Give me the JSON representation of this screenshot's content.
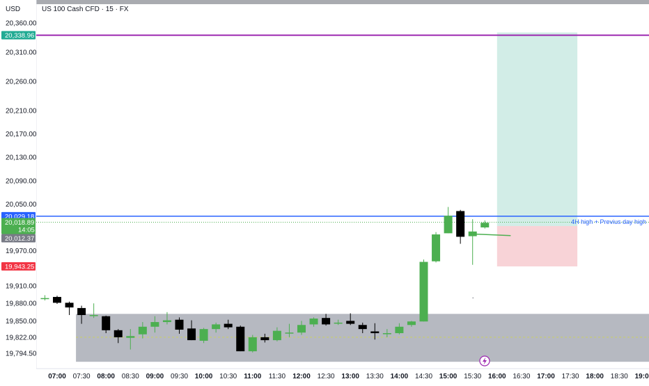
{
  "header": {
    "currency": "USD",
    "symbol_title": "US 100 Cash CFD · 15 · FX"
  },
  "colors": {
    "up": "#4caf50",
    "down": "#000000",
    "target_line": "#9c27b0",
    "level_line": "#2962ff",
    "zone_gray": "#b2b5be",
    "profit_zone": "#d2ede7",
    "loss_zone": "#f8d3d7",
    "badge_target": "#22ab94",
    "badge_level": "#2962ff",
    "badge_price": "#4caf50",
    "badge_gray": "#787b86",
    "badge_stop": "#f23645"
  },
  "badges": {
    "target": "20,338.96",
    "level": "20,029.18",
    "last_price": "20,018.89",
    "countdown": "14:05",
    "entry": "20,012.37",
    "stop": "19,943.25"
  },
  "annotation": "4H high + Previus day high",
  "chart_data": {
    "type": "candlestick",
    "title": "US 100 Cash CFD · 15 · FX",
    "ylim": [
      19770,
      20385
    ],
    "y_ticks": [
      "20,360.00",
      "20,310.00",
      "20,260.00",
      "20,210.00",
      "20,170.00",
      "20,130.00",
      "20,090.00",
      "20,050.00",
      "19,970.00",
      "19,910.00",
      "19,880.00",
      "19,850.00",
      "19,822.00",
      "19,794.50"
    ],
    "y_tick_values": [
      20360,
      20310,
      20260,
      20210,
      20170,
      20130,
      20090,
      20050,
      19970,
      19910,
      19880,
      19850,
      19822,
      19794.5
    ],
    "x_ticks": [
      "07:00",
      "07:30",
      "08:00",
      "08:30",
      "09:00",
      "09:30",
      "10:00",
      "10:30",
      "11:00",
      "11:30",
      "12:00",
      "12:30",
      "13:00",
      "13:30",
      "14:00",
      "14:30",
      "15:00",
      "15:30",
      "16:00",
      "16:30",
      "17:00",
      "17:30",
      "18:00",
      "18:30",
      "19:00"
    ],
    "x_major": [
      "07:00",
      "08:00",
      "09:00",
      "10:00",
      "11:00",
      "12:00",
      "13:00",
      "14:00",
      "15:00",
      "16:00",
      "17:00",
      "18:00",
      "19:00"
    ],
    "candles": [
      {
        "t": "06:45",
        "o": 19889,
        "h": 19894,
        "l": 19885,
        "c": 19889
      },
      {
        "t": "07:00",
        "o": 19891,
        "h": 19893,
        "l": 19879,
        "c": 19881
      },
      {
        "t": "07:15",
        "o": 19881,
        "h": 19883,
        "l": 19860,
        "c": 19873
      },
      {
        "t": "07:30",
        "o": 19872,
        "h": 19876,
        "l": 19845,
        "c": 19860
      },
      {
        "t": "07:45",
        "o": 19860,
        "h": 19880,
        "l": 19855,
        "c": 19860
      },
      {
        "t": "08:00",
        "o": 19858,
        "h": 19859,
        "l": 19829,
        "c": 19834
      },
      {
        "t": "08:15",
        "o": 19834,
        "h": 19836,
        "l": 19812,
        "c": 19822
      },
      {
        "t": "08:30",
        "o": 19821,
        "h": 19836,
        "l": 19801,
        "c": 19824
      },
      {
        "t": "08:45",
        "o": 19827,
        "h": 19848,
        "l": 19820,
        "c": 19840
      },
      {
        "t": "09:00",
        "o": 19840,
        "h": 19858,
        "l": 19830,
        "c": 19848
      },
      {
        "t": "09:15",
        "o": 19848,
        "h": 19865,
        "l": 19844,
        "c": 19851
      },
      {
        "t": "09:30",
        "o": 19852,
        "h": 19856,
        "l": 19828,
        "c": 19835
      },
      {
        "t": "09:45",
        "o": 19837,
        "h": 19851,
        "l": 19817,
        "c": 19817
      },
      {
        "t": "10:00",
        "o": 19816,
        "h": 19838,
        "l": 19812,
        "c": 19836
      },
      {
        "t": "10:15",
        "o": 19836,
        "h": 19847,
        "l": 19830,
        "c": 19844
      },
      {
        "t": "10:30",
        "o": 19845,
        "h": 19852,
        "l": 19836,
        "c": 19839
      },
      {
        "t": "10:45",
        "o": 19840,
        "h": 19842,
        "l": 19798,
        "c": 19798
      },
      {
        "t": "11:00",
        "o": 19798,
        "h": 19826,
        "l": 19796,
        "c": 19822
      },
      {
        "t": "11:15",
        "o": 19822,
        "h": 19828,
        "l": 19813,
        "c": 19817
      },
      {
        "t": "11:30",
        "o": 19817,
        "h": 19839,
        "l": 19815,
        "c": 19833
      },
      {
        "t": "11:45",
        "o": 19829,
        "h": 19845,
        "l": 19822,
        "c": 19830
      },
      {
        "t": "12:00",
        "o": 19830,
        "h": 19850,
        "l": 19826,
        "c": 19843
      },
      {
        "t": "12:15",
        "o": 19844,
        "h": 19856,
        "l": 19840,
        "c": 19854
      },
      {
        "t": "12:30",
        "o": 19855,
        "h": 19862,
        "l": 19842,
        "c": 19844
      },
      {
        "t": "12:45",
        "o": 19846,
        "h": 19852,
        "l": 19843,
        "c": 19847
      },
      {
        "t": "13:00",
        "o": 19850,
        "h": 19863,
        "l": 19843,
        "c": 19845
      },
      {
        "t": "13:15",
        "o": 19843,
        "h": 19847,
        "l": 19829,
        "c": 19836
      },
      {
        "t": "13:30",
        "o": 19832,
        "h": 19846,
        "l": 19818,
        "c": 19829
      },
      {
        "t": "13:45",
        "o": 19829,
        "h": 19836,
        "l": 19822,
        "c": 19829
      },
      {
        "t": "14:00",
        "o": 19829,
        "h": 19846,
        "l": 19827,
        "c": 19840
      },
      {
        "t": "14:15",
        "o": 19843,
        "h": 19850,
        "l": 19840,
        "c": 19849
      },
      {
        "t": "14:30",
        "o": 19849,
        "h": 19955,
        "l": 19849,
        "c": 19951
      },
      {
        "t": "14:45",
        "o": 19952,
        "h": 20002,
        "l": 19950,
        "c": 19998
      },
      {
        "t": "15:00",
        "o": 20000,
        "h": 20045,
        "l": 20000,
        "c": 20030
      },
      {
        "t": "15:15",
        "o": 20038,
        "h": 20040,
        "l": 19982,
        "c": 19994
      },
      {
        "t": "15:30",
        "o": 19995,
        "h": 20024,
        "l": 19946,
        "c": 20003
      },
      {
        "t": "15:45",
        "o": 20010,
        "h": 20022,
        "l": 20008,
        "c": 20018
      }
    ],
    "horizontal_lines": [
      {
        "name": "target",
        "value": 20338.96
      },
      {
        "name": "level",
        "value": 20029.18
      },
      {
        "name": "last-price",
        "value": 20018.89
      }
    ],
    "gray_zone": {
      "from": "07:30",
      "top": 19862,
      "bottom": 19780
    },
    "position": {
      "entry": 20012.37,
      "target": 20338.96,
      "stop": 19943.25,
      "from": "16:00",
      "to": "17:30"
    }
  }
}
